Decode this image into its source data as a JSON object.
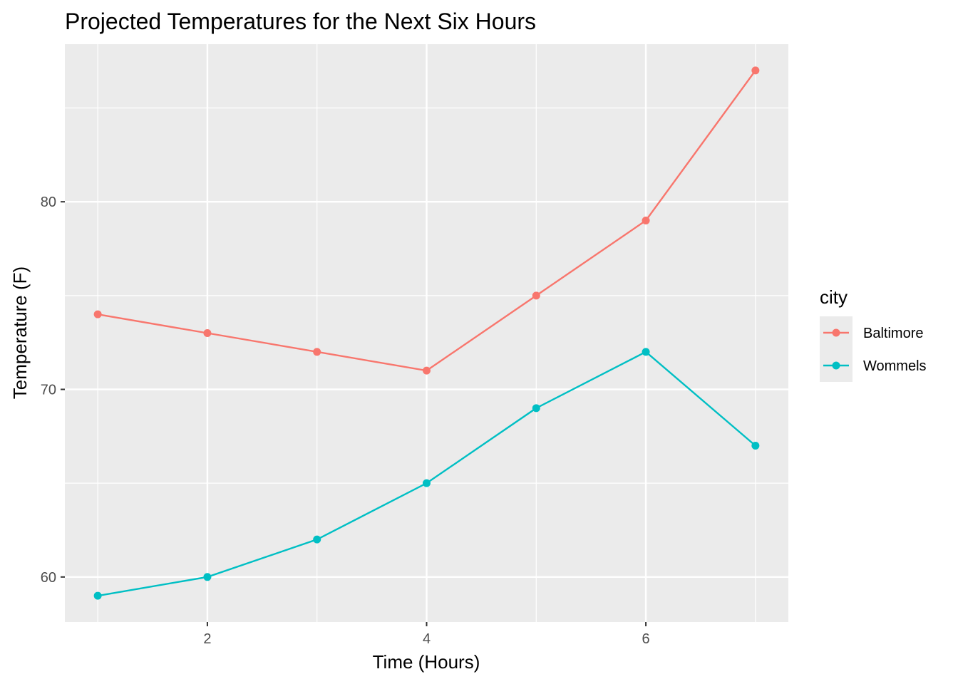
{
  "chart_data": {
    "type": "line",
    "title": "Projected Temperatures for the Next Six Hours",
    "xlabel": "Time (Hours)",
    "ylabel": "Temperature (F)",
    "x": [
      1,
      2,
      3,
      4,
      5,
      6,
      7
    ],
    "xlim": [
      0.7,
      7.3
    ],
    "ylim": [
      57.6,
      88.4
    ],
    "x_ticks": [
      2,
      4,
      6
    ],
    "y_ticks": [
      60,
      70,
      80
    ],
    "grid": true,
    "legend": {
      "title": "city",
      "placement": "right"
    },
    "series": [
      {
        "name": "Baltimore",
        "color": "#F8766D",
        "values": [
          74,
          73,
          72,
          71,
          75,
          79,
          87
        ]
      },
      {
        "name": "Wommels",
        "color": "#00BFC4",
        "values": [
          59,
          60,
          62,
          65,
          69,
          72,
          67
        ]
      }
    ]
  }
}
